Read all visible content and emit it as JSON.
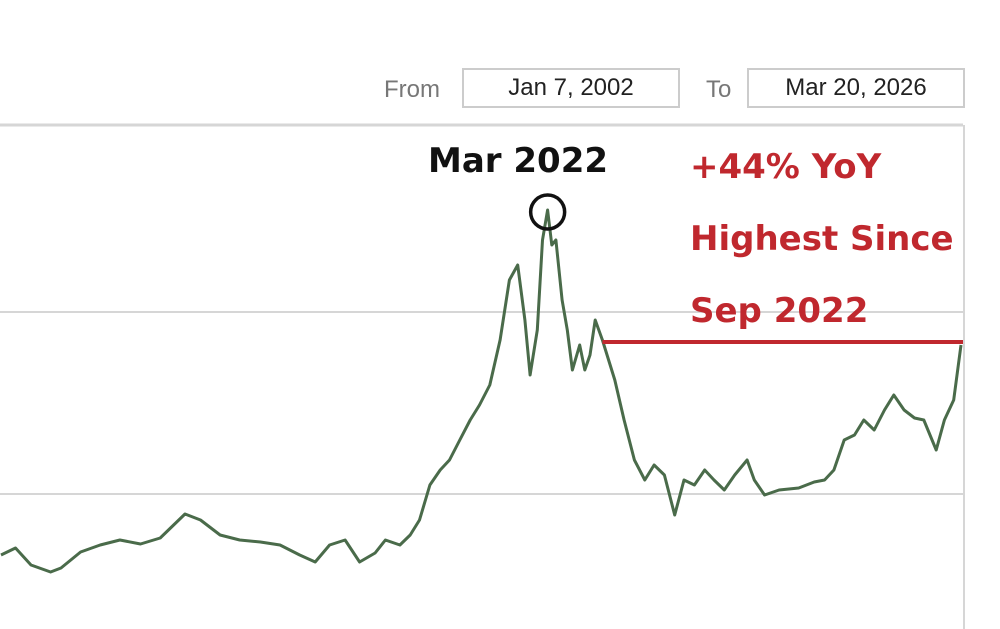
{
  "date_range": {
    "from_label": "From",
    "from_value": "Jan 7, 2002",
    "to_label": "To",
    "to_value": "Mar 20, 2026"
  },
  "chart_data": {
    "type": "line",
    "title": "",
    "xlabel": "",
    "ylabel": "",
    "x_units": "year (approximate, no axis ticks visible)",
    "xlim": [
      2016.9,
      2026.21
    ],
    "ylim": [
      0,
      252
    ],
    "grid": true,
    "gridlines_y": [
      67.5,
      158.5
    ],
    "line_color": "#4a6b4a",
    "series": [
      {
        "x": [
          2016.91,
          2017.05,
          2017.2,
          2017.39,
          2017.49,
          2017.68,
          2017.87,
          2018.06,
          2018.26,
          2018.45,
          2018.69,
          2018.84,
          2019.03,
          2019.22,
          2019.42,
          2019.61,
          2019.8,
          2019.95,
          2020.09,
          2020.24,
          2020.38,
          2020.53,
          2020.63,
          2020.77,
          2020.87,
          2020.96,
          2021.06,
          2021.16,
          2021.25,
          2021.35,
          2021.45,
          2021.54,
          2021.64,
          2021.74,
          2021.83,
          2021.91,
          2021.98,
          2022.03,
          2022.1,
          2022.15,
          2022.2,
          2022.24,
          2022.28,
          2022.34,
          2022.39,
          2022.44,
          2022.51,
          2022.56,
          2022.61,
          2022.66,
          2022.73,
          2022.85,
          2022.94,
          2023.04,
          2023.14,
          2023.23,
          2023.33,
          2023.43,
          2023.52,
          2023.62,
          2023.72,
          2023.81,
          2023.91,
          2024.01,
          2024.13,
          2024.2,
          2024.3,
          2024.44,
          2024.63,
          2024.78,
          2024.88,
          2024.97,
          2025.07,
          2025.17,
          2025.26,
          2025.36,
          2025.46,
          2025.55,
          2025.65,
          2025.75,
          2025.84,
          2025.96,
          2026.04,
          2026.13,
          2026.2
        ],
        "y": [
          37,
          40.5,
          32,
          28.5,
          30.5,
          38.5,
          42,
          44.5,
          42.5,
          45.5,
          57.5,
          54.5,
          47,
          44.5,
          43.5,
          42,
          37,
          33.5,
          42,
          44.5,
          33.5,
          38,
          44.5,
          42,
          47,
          54.5,
          72,
          79.5,
          84.5,
          94.5,
          104.5,
          112,
          122,
          144.5,
          174.5,
          182,
          154.5,
          127,
          149.5,
          194.5,
          209.5,
          192,
          194.5,
          164.5,
          149.5,
          129.5,
          142,
          129.5,
          137,
          154.5,
          144.5,
          124.5,
          104.5,
          84.5,
          74.5,
          82,
          77,
          57,
          74.5,
          72,
          79.5,
          74.5,
          69.5,
          77,
          84.5,
          74.5,
          67,
          69.5,
          70.5,
          73.5,
          74.5,
          79.5,
          94.5,
          97,
          104.5,
          99.5,
          109.5,
          117,
          109.5,
          105.5,
          104.5,
          89.5,
          104.5,
          114.5,
          142
        ]
      }
    ],
    "annotations": {
      "peak_label": "Mar 2022",
      "peak_x": 2022.2,
      "peak_y": 209.5,
      "note_lines": [
        "+44% YoY",
        "Highest Since",
        "Sep 2022"
      ],
      "note_color": "#c0282e",
      "reference_line_y": 143.5,
      "reference_line_from_x": 2022.73,
      "reference_line_color": "#c0282e"
    }
  }
}
